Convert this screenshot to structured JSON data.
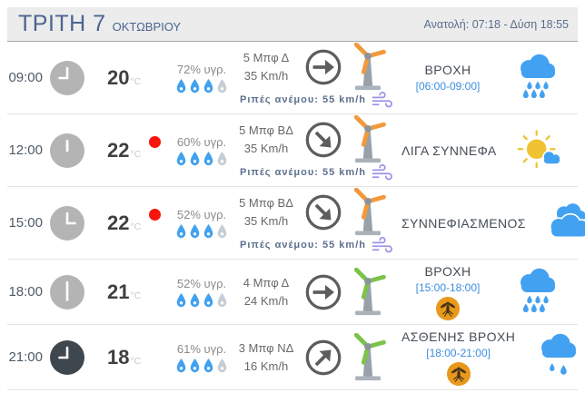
{
  "header": {
    "day": "ΤΡΙΤΗ 7",
    "month": "ΟΚΤΩΒΡΙΟΥ",
    "sun_info": "Ανατολή: 07:18 - Δύση 18:55"
  },
  "colors": {
    "title_blue": "#4a6491",
    "sun_info_blue": "#5b6e8c",
    "period_blue": "#3b8de0",
    "record_red": "#f8150f",
    "rain_blue": "#42a1f0",
    "sun_yellow": "#efc331",
    "turbine_orange": "#f09a3c",
    "turbine_green": "#7cc34a",
    "gust_purple": "#9b93e6",
    "mosquito_orange": "#e8991c",
    "drop_blue": "#42a1f0",
    "drop_gray": "#c5ced6",
    "clock_gray": "#b4b4b4",
    "clock_dark": "#3f474e"
  },
  "rows": [
    {
      "time": "09:00",
      "clock_dark": false,
      "temp": "20",
      "temp_unit": "°C",
      "record_dot": false,
      "humidity": "72% υγρ.",
      "drops_filled": 3,
      "drops_total": 4,
      "wind_beaufort": "5 Μπφ Δ",
      "wind_speed": "35 Km/h",
      "gust": "Ριπές ανέμου: 55 km/h",
      "wind_dir": "E",
      "turbine": "orange",
      "condition": "ΒΡΟΧΗ",
      "period": "[06:00-09:00]",
      "mosquito": false,
      "icon": "rain"
    },
    {
      "time": "12:00",
      "clock_dark": false,
      "temp": "22",
      "temp_unit": "°C",
      "record_dot": true,
      "humidity": "60% υγρ.",
      "drops_filled": 3,
      "drops_total": 4,
      "wind_beaufort": "5 Μπφ ΒΔ",
      "wind_speed": "35 Km/h",
      "gust": "Ριπές ανέμου: 55 km/h",
      "wind_dir": "SE",
      "turbine": "orange",
      "condition": "ΛΙΓΑ ΣΥΝΝΕΦΑ",
      "period": "",
      "mosquito": false,
      "icon": "sun-cloud"
    },
    {
      "time": "15:00",
      "clock_dark": false,
      "temp": "22",
      "temp_unit": "°C",
      "record_dot": true,
      "humidity": "52% υγρ.",
      "drops_filled": 3,
      "drops_total": 4,
      "wind_beaufort": "5 Μπφ ΒΔ",
      "wind_speed": "35 Km/h",
      "gust": "Ριπές ανέμου: 55 km/h",
      "wind_dir": "SE",
      "turbine": "orange",
      "condition": "ΣΥΝΝΕΦΙΑΣΜΕΝΟΣ",
      "period": "",
      "mosquito": false,
      "icon": "clouds"
    },
    {
      "time": "18:00",
      "clock_dark": false,
      "temp": "21",
      "temp_unit": "°C",
      "record_dot": false,
      "humidity": "52% υγρ.",
      "drops_filled": 3,
      "drops_total": 4,
      "wind_beaufort": "4 Μπφ Δ",
      "wind_speed": "24 Km/h",
      "gust": "",
      "wind_dir": "E",
      "turbine": "green",
      "condition": "ΒΡΟΧΗ",
      "period": "[15:00-18:00]",
      "mosquito": true,
      "icon": "rain"
    },
    {
      "time": "21:00",
      "clock_dark": true,
      "temp": "18",
      "temp_unit": "°C",
      "record_dot": false,
      "humidity": "61% υγρ.",
      "drops_filled": 3,
      "drops_total": 4,
      "wind_beaufort": "3 Μπφ ΝΔ",
      "wind_speed": "16 Km/h",
      "gust": "",
      "wind_dir": "NE",
      "turbine": "green",
      "condition": "ΑΣΘΕΝΗΣ ΒΡΟΧΗ",
      "period": "[18:00-21:00]",
      "mosquito": true,
      "icon": "light-rain"
    }
  ]
}
